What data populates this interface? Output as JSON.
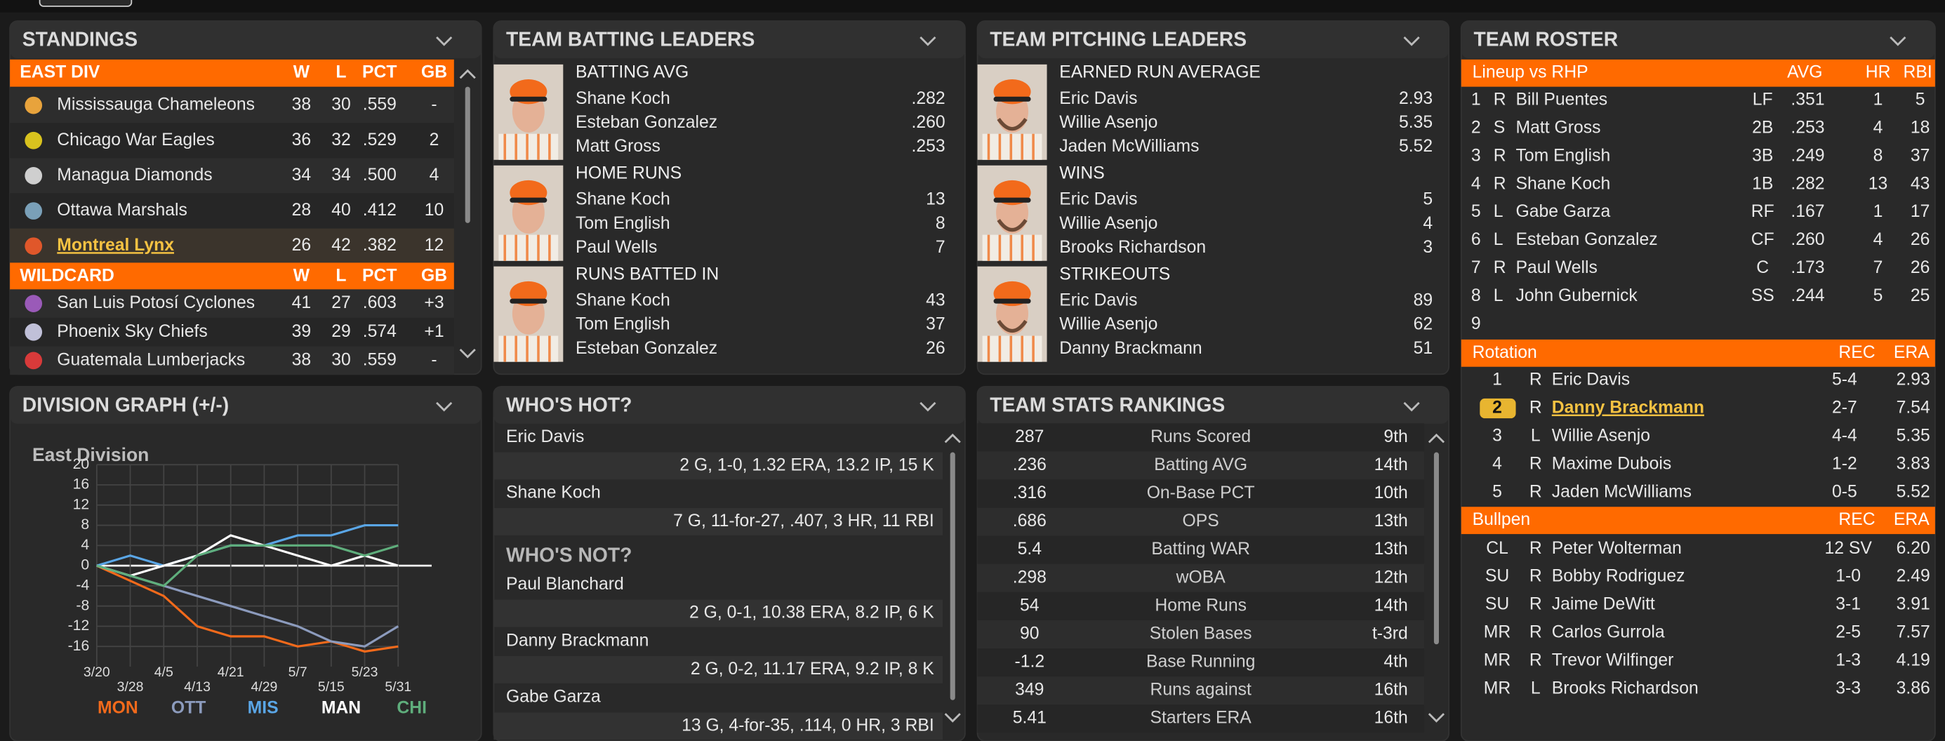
{
  "standings": {
    "title": "STANDINGS",
    "groups": [
      {
        "name": "EAST DIV",
        "columns": [
          "W",
          "L",
          "PCT",
          "GB"
        ],
        "rows": [
          {
            "team": "Mississauga Chameleons",
            "stats": [
              "38",
              "30",
              ".559",
              "-"
            ]
          },
          {
            "team": "Chicago War Eagles",
            "stats": [
              "36",
              "32",
              ".529",
              "2"
            ]
          },
          {
            "team": "Managua Diamonds",
            "stats": [
              "34",
              "34",
              ".500",
              "4"
            ]
          },
          {
            "team": "Ottawa Marshals",
            "stats": [
              "28",
              "40",
              ".412",
              "10"
            ]
          },
          {
            "team": "Montreal Lynx",
            "stats": [
              "26",
              "42",
              ".382",
              "12"
            ]
          }
        ]
      },
      {
        "name": "WILDCARD",
        "columns": [
          "W",
          "L",
          "PCT",
          "GB"
        ],
        "rows": [
          {
            "team": "San Luis Potosí Cyclones",
            "stats": [
              "41",
              "27",
              ".603",
              "+3"
            ]
          },
          {
            "team": "Phoenix Sky Chiefs",
            "stats": [
              "39",
              "29",
              ".574",
              "+1"
            ]
          },
          {
            "team": "Guatemala Lumberjacks",
            "stats": [
              "38",
              "30",
              ".559",
              "-"
            ]
          }
        ]
      }
    ]
  },
  "batting_leaders": {
    "title": "TEAM BATTING LEADERS",
    "categories": [
      {
        "name": "BATTING AVG",
        "leaders": [
          {
            "player": "Shane Koch",
            "value": ".282"
          },
          {
            "player": "Esteban Gonzalez",
            "value": ".260"
          },
          {
            "player": "Matt Gross",
            "value": ".253"
          }
        ]
      },
      {
        "name": "HOME RUNS",
        "leaders": [
          {
            "player": "Shane Koch",
            "value": "13"
          },
          {
            "player": "Tom English",
            "value": "8"
          },
          {
            "player": "Paul Wells",
            "value": "7"
          }
        ]
      },
      {
        "name": "RUNS BATTED IN",
        "leaders": [
          {
            "player": "Shane Koch",
            "value": "43"
          },
          {
            "player": "Tom English",
            "value": "37"
          },
          {
            "player": "Esteban Gonzalez",
            "value": "26"
          }
        ]
      }
    ]
  },
  "pitching_leaders": {
    "title": "TEAM PITCHING LEADERS",
    "categories": [
      {
        "name": "EARNED RUN AVERAGE",
        "leaders": [
          {
            "player": "Eric Davis",
            "value": "2.93"
          },
          {
            "player": "Willie Asenjo",
            "value": "5.35"
          },
          {
            "player": "Jaden McWilliams",
            "value": "5.52"
          }
        ]
      },
      {
        "name": "WINS",
        "leaders": [
          {
            "player": "Eric Davis",
            "value": "5"
          },
          {
            "player": "Willie Asenjo",
            "value": "4"
          },
          {
            "player": "Brooks Richardson",
            "value": "3"
          }
        ]
      },
      {
        "name": "STRIKEOUTS",
        "leaders": [
          {
            "player": "Eric Davis",
            "value": "89"
          },
          {
            "player": "Willie Asenjo",
            "value": "62"
          },
          {
            "player": "Danny Brackmann",
            "value": "51"
          }
        ]
      }
    ]
  },
  "roster": {
    "title": "TEAM ROSTER",
    "lineup": {
      "header": [
        "Lineup vs RHP",
        "AVG",
        "HR",
        "RBI"
      ],
      "rows": [
        [
          "1",
          "R",
          "Bill Puentes",
          "LF",
          ".351",
          "1",
          "5"
        ],
        [
          "2",
          "S",
          "Matt Gross",
          "2B",
          ".253",
          "4",
          "18"
        ],
        [
          "3",
          "R",
          "Tom English",
          "3B",
          ".249",
          "8",
          "37"
        ],
        [
          "4",
          "R",
          "Shane Koch",
          "1B",
          ".282",
          "13",
          "43"
        ],
        [
          "5",
          "L",
          "Gabe Garza",
          "RF",
          ".167",
          "1",
          "17"
        ],
        [
          "6",
          "L",
          "Esteban Gonzalez",
          "CF",
          ".260",
          "4",
          "26"
        ],
        [
          "7",
          "R",
          "Paul Wells",
          "C",
          ".173",
          "7",
          "26"
        ],
        [
          "8",
          "L",
          "John Gubernick",
          "SS",
          ".244",
          "5",
          "25"
        ],
        [
          "9"
        ]
      ]
    },
    "rotation": {
      "header": [
        "Rotation",
        "REC",
        "ERA"
      ],
      "rows": [
        [
          "1",
          "R",
          "Eric Davis",
          "5-4",
          "2.93"
        ],
        [
          "2",
          "R",
          "Danny Brackmann",
          "2-7",
          "7.54"
        ],
        [
          "3",
          "L",
          "Willie Asenjo",
          "4-4",
          "5.35"
        ],
        [
          "4",
          "R",
          "Maxime Dubois",
          "1-2",
          "3.83"
        ],
        [
          "5",
          "R",
          "Jaden McWilliams",
          "0-5",
          "5.52"
        ]
      ]
    },
    "bullpen": {
      "header": [
        "Bullpen",
        "REC",
        "ERA"
      ],
      "rows": [
        [
          "CL",
          "R",
          "Peter Wolterman",
          "12 SV",
          "6.20"
        ],
        [
          "SU",
          "R",
          "Bobby Rodriguez",
          "1-0",
          "2.49"
        ],
        [
          "SU",
          "R",
          "Jaime DeWitt",
          "3-1",
          "3.91"
        ],
        [
          "MR",
          "R",
          "Carlos Gurrola",
          "2-5",
          "7.57"
        ],
        [
          "MR",
          "R",
          "Trevor Wilfinger",
          "1-3",
          "4.19"
        ],
        [
          "MR",
          "L",
          "Brooks Richardson",
          "3-3",
          "3.86"
        ]
      ]
    }
  },
  "division_graph": {
    "title": "DIVISION GRAPH (+/-)"
  },
  "chart_data": {
    "type": "line",
    "title": "East Division",
    "x": [
      "3/20",
      "3/28",
      "4/5",
      "4/13",
      "4/21",
      "4/29",
      "5/7",
      "5/15",
      "5/23",
      "5/31"
    ],
    "ylim": [
      -20,
      20
    ],
    "yticks": [
      20,
      16,
      12,
      8,
      4,
      0,
      -4,
      -8,
      -12,
      -16
    ],
    "grid": true,
    "series": [
      {
        "name": "MON",
        "color": "#f26a1b",
        "values": [
          0,
          -3,
          -6,
          -12,
          -14,
          -14,
          -16,
          -15,
          -17,
          -16
        ]
      },
      {
        "name": "OTT",
        "color": "#8c9bbd",
        "values": [
          0,
          -2,
          -4,
          -6,
          -8,
          -10,
          -12,
          -15,
          -16,
          -12
        ]
      },
      {
        "name": "MIS",
        "color": "#5aa6e6",
        "values": [
          0,
          2,
          0,
          2,
          4,
          4,
          6,
          6,
          8,
          8
        ]
      },
      {
        "name": "MAN",
        "color": "#ffffff",
        "values": [
          0,
          -2,
          0,
          2,
          6,
          4,
          2,
          0,
          2,
          0
        ]
      },
      {
        "name": "CHI",
        "color": "#5fae7c",
        "values": [
          0,
          -2,
          -4,
          2,
          4,
          4,
          4,
          4,
          2,
          4
        ]
      }
    ]
  },
  "whos_hot": {
    "title": "WHO'S HOT?",
    "hot": [
      {
        "player": "Eric Davis",
        "line": "2 G, 1-0, 1.32 ERA, 13.2 IP, 15 K"
      },
      {
        "player": "Shane Koch",
        "line": "7 G, 11-for-27, .407, 3 HR, 11 RBI"
      }
    ],
    "not_title": "WHO'S NOT?",
    "not": [
      {
        "player": "Paul Blanchard",
        "line": "2 G, 0-1, 10.38 ERA, 8.2 IP, 6 K"
      },
      {
        "player": "Danny Brackmann",
        "line": "2 G, 0-2, 11.17 ERA, 9.2 IP, 8 K"
      },
      {
        "player": "Gabe Garza",
        "line": "13 G, 4-for-35, .114, 0 HR, 3 RBI"
      }
    ]
  },
  "team_stats": {
    "title": "TEAM STATS RANKINGS",
    "rows": [
      [
        "287",
        "Runs Scored",
        "9th"
      ],
      [
        ".236",
        "Batting AVG",
        "14th"
      ],
      [
        ".316",
        "On-Base PCT",
        "10th"
      ],
      [
        ".686",
        "OPS",
        "13th"
      ],
      [
        "5.4",
        "Batting WAR",
        "13th"
      ],
      [
        ".298",
        "wOBA",
        "12th"
      ],
      [
        "54",
        "Home Runs",
        "14th"
      ],
      [
        "90",
        "Stolen Bases",
        "t-3rd"
      ],
      [
        "-1.2",
        "Base Running",
        "4th"
      ],
      [
        "349",
        "Runs against",
        "16th"
      ],
      [
        "5.41",
        "Starters ERA",
        "16th"
      ]
    ]
  }
}
